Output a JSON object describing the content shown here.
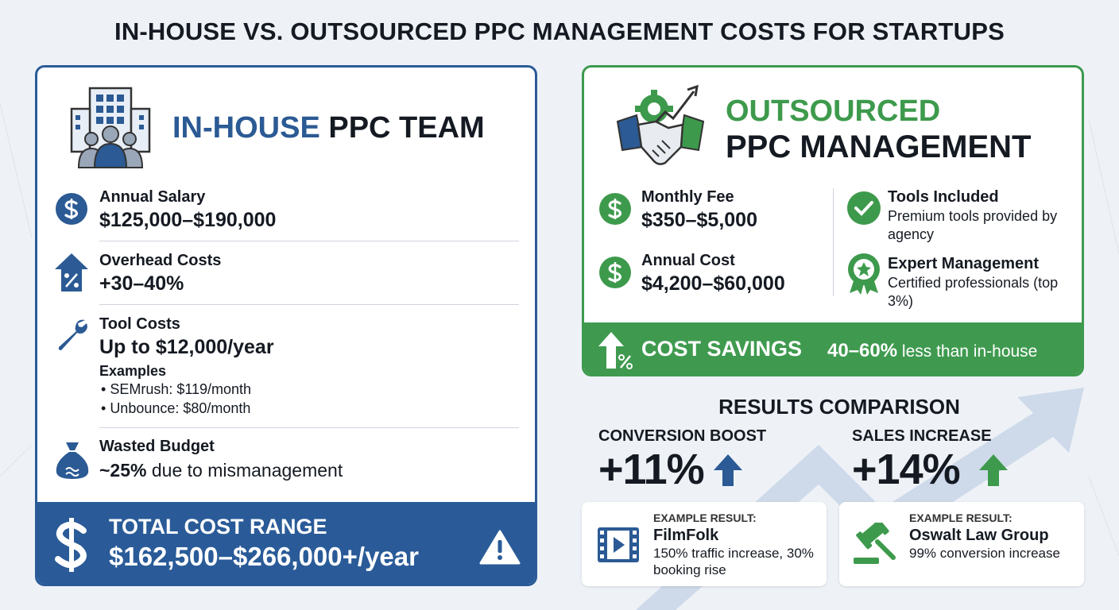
{
  "title": "IN-HOUSE VS. OUTSOURCED PPC MANAGEMENT COSTS FOR STARTUPS",
  "in_house": {
    "heading_accent": "IN-HOUSE",
    "heading_rest": "PPC TEAM",
    "items": [
      {
        "label": "Annual Salary",
        "value": "$125,000–$190,000"
      },
      {
        "label": "Overhead Costs",
        "value": "+30–40%"
      },
      {
        "label": "Tool Costs",
        "value": "Up to $12,000/year",
        "sub_label": "Examples",
        "examples": [
          "SEMrush: $119/month",
          "Unbounce: $80/month"
        ]
      },
      {
        "label": "Wasted Budget",
        "value_strong": "~25%",
        "value_rest": "due to mismanagement"
      }
    ],
    "total": {
      "label": "TOTAL COST RANGE",
      "value": "$162,500–$266,000+/year"
    }
  },
  "outsourced": {
    "heading_accent": "OUTSOURCED",
    "heading_rest": "PPC MANAGEMENT",
    "costs": [
      {
        "label": "Monthly Fee",
        "value": "$350–$5,000"
      },
      {
        "label": "Annual Cost",
        "value": "$4,200–$60,000"
      }
    ],
    "features": [
      {
        "label": "Tools Included",
        "text": "Premium tools provided by agency"
      },
      {
        "label": "Expert Management",
        "text": "Certified professionals (top 3%)"
      }
    ],
    "savings": {
      "label": "COST SAVINGS",
      "value_strong": "40–60%",
      "value_rest": "less than in-house"
    }
  },
  "results": {
    "title": "RESULTS COMPARISON",
    "metrics": [
      {
        "label": "CONVERSION BOOST",
        "value": "+11%"
      },
      {
        "label": "SALES INCREASE",
        "value": "+14%"
      }
    ],
    "examples": [
      {
        "kicker": "EXAMPLE RESULT:",
        "name": "FilmFolk",
        "text": "150% traffic increase, 30% booking rise"
      },
      {
        "kicker": "EXAMPLE RESULT:",
        "name": "Oswalt Law Group",
        "text": "99% conversion increase"
      }
    ]
  }
}
